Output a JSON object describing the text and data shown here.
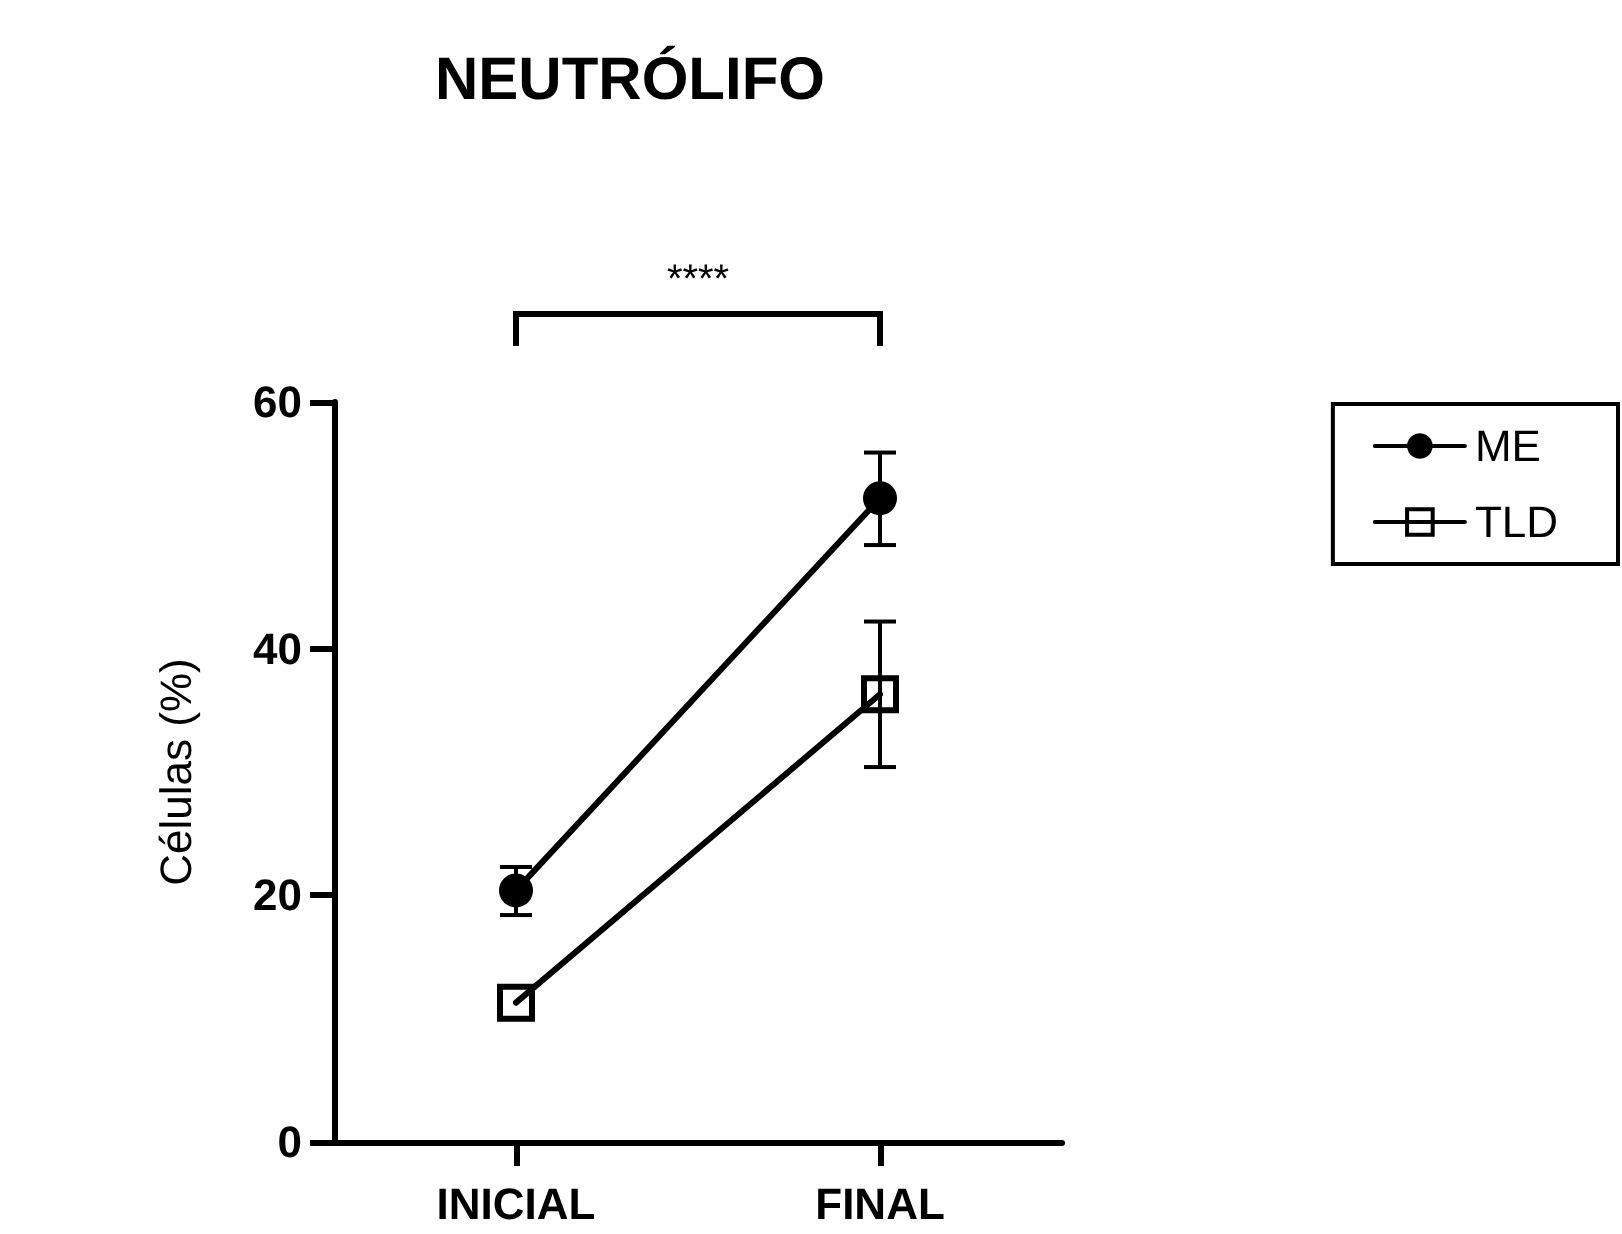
{
  "chart_data": {
    "type": "line",
    "title": "NEUTRÓLIFO",
    "ylabel": "Células (%)",
    "categories": [
      "INICIAL",
      "FINAL"
    ],
    "series": [
      {
        "name": "ME",
        "color": "#000000",
        "marker": "circle",
        "values": [
          20.4,
          52.2
        ],
        "errors": [
          [
            18.4,
            22.3
          ],
          [
            48.4,
            55.9
          ]
        ]
      },
      {
        "name": "TLD",
        "color": "#000000",
        "marker": "square",
        "values": [
          11.3,
          36.3
        ],
        "errors": [
          null,
          [
            30.4,
            42.2
          ]
        ]
      }
    ],
    "ylim": [
      0,
      60
    ],
    "yticks": [
      0,
      20,
      40,
      60
    ],
    "grid": false,
    "legend": "top right",
    "line_style": "solid",
    "annotations": [
      "****"
    ]
  }
}
